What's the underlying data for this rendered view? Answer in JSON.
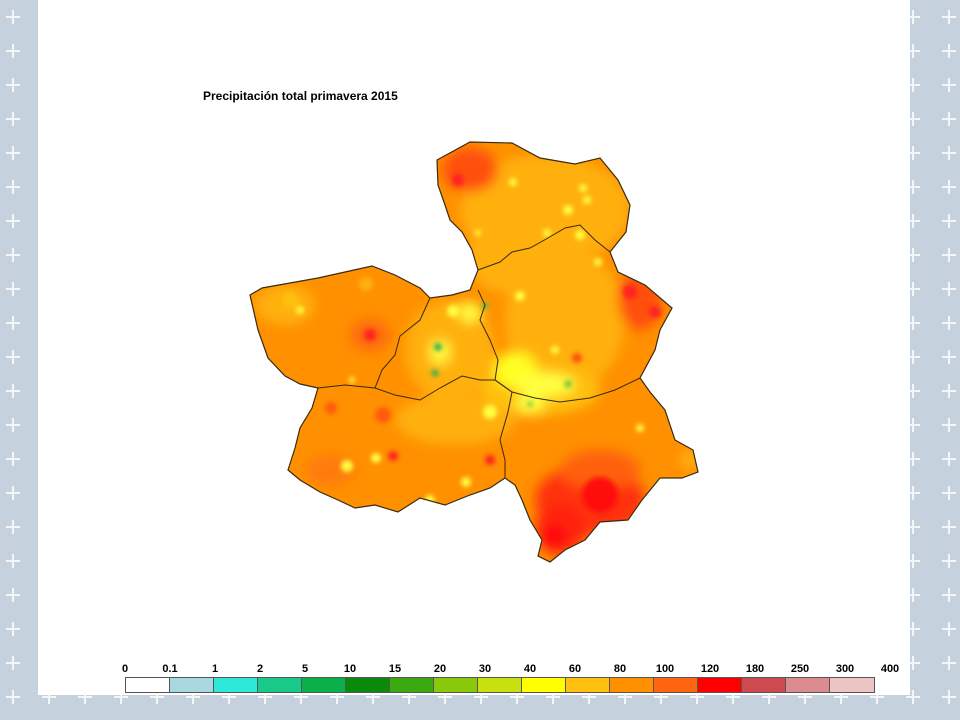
{
  "map": {
    "title": "Precipitación total primavera 2015"
  },
  "legend": {
    "labels": [
      "0",
      "0.1",
      "1",
      "2",
      "5",
      "10",
      "15",
      "20",
      "30",
      "40",
      "60",
      "80",
      "100",
      "120",
      "180",
      "250",
      "300",
      "400"
    ],
    "colors": [
      "#ffffff",
      "#a8d8e0",
      "#2ee8d8",
      "#19c98a",
      "#0ab04a",
      "#0a8a0a",
      "#3aaa10",
      "#8ac80a",
      "#c8e010",
      "#ffff00",
      "#ffc010",
      "#ff9000",
      "#ff6410",
      "#ff0000",
      "#cc4a50",
      "#dc8c90",
      "#ecc4c4"
    ]
  },
  "colors": {
    "slide_bg": "#ffffff",
    "outer_bg": "#c6d1de",
    "border": "#3a2a10"
  }
}
